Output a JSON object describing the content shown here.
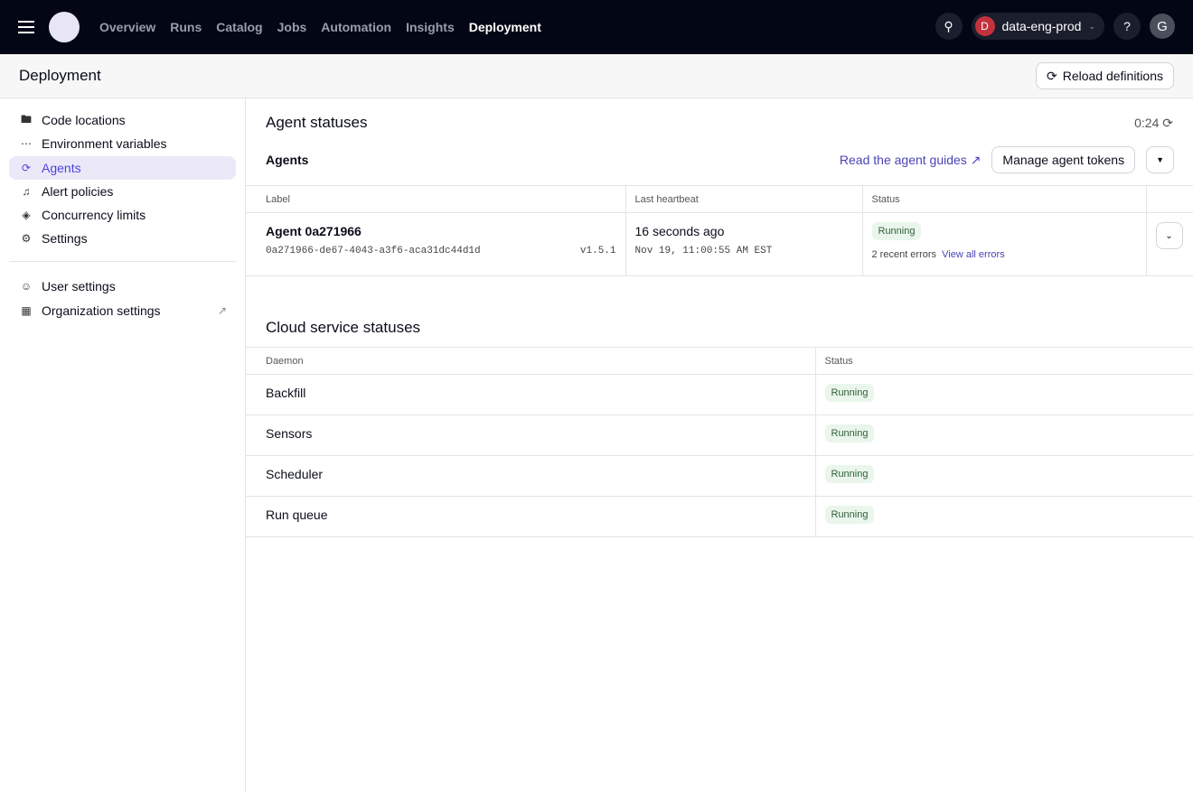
{
  "nav": {
    "items": [
      "Overview",
      "Runs",
      "Catalog",
      "Jobs",
      "Automation",
      "Insights",
      "Deployment"
    ],
    "active": "Deployment",
    "deployment": "data-eng-prod",
    "deployment_initial": "D",
    "user_initial": "G"
  },
  "header": {
    "title": "Deployment",
    "reload": "Reload definitions"
  },
  "sidebar": {
    "items": [
      {
        "label": "Code locations",
        "icon": "folder-icon"
      },
      {
        "label": "Environment variables",
        "icon": "dots-icon"
      },
      {
        "label": "Agents",
        "icon": "agents-icon"
      },
      {
        "label": "Alert policies",
        "icon": "bell-icon"
      },
      {
        "label": "Concurrency limits",
        "icon": "layers-icon"
      },
      {
        "label": "Settings",
        "icon": "gear-icon"
      }
    ],
    "bottom": [
      {
        "label": "User settings",
        "icon": "user-icon"
      },
      {
        "label": "Organization settings",
        "icon": "building-icon"
      }
    ]
  },
  "agents": {
    "title": "Agent statuses",
    "timer": "0:24",
    "subtitle": "Agents",
    "guide_link": "Read the agent guides",
    "manage": "Manage agent tokens",
    "columns": [
      "Label",
      "Last heartbeat",
      "Status"
    ],
    "row": {
      "name": "Agent 0a271966",
      "id": "0a271966-de67-4043-a3f6-aca31dc44d1d",
      "version": "v1.5.1",
      "heartbeat": "16 seconds ago",
      "time": "Nov 19, 11:00:55 AM EST",
      "status": "Running",
      "errors": "2 recent errors",
      "view_errors": "View all errors"
    }
  },
  "cloud": {
    "title": "Cloud service statuses",
    "columns": [
      "Daemon",
      "Status"
    ],
    "rows": [
      {
        "name": "Backfill",
        "status": "Running"
      },
      {
        "name": "Sensors",
        "status": "Running"
      },
      {
        "name": "Scheduler",
        "status": "Running"
      },
      {
        "name": "Run queue",
        "status": "Running"
      }
    ]
  },
  "colors": {
    "topbar": "#030615",
    "accent": "#4f43dd",
    "running_bg": "#eaf6ec"
  }
}
